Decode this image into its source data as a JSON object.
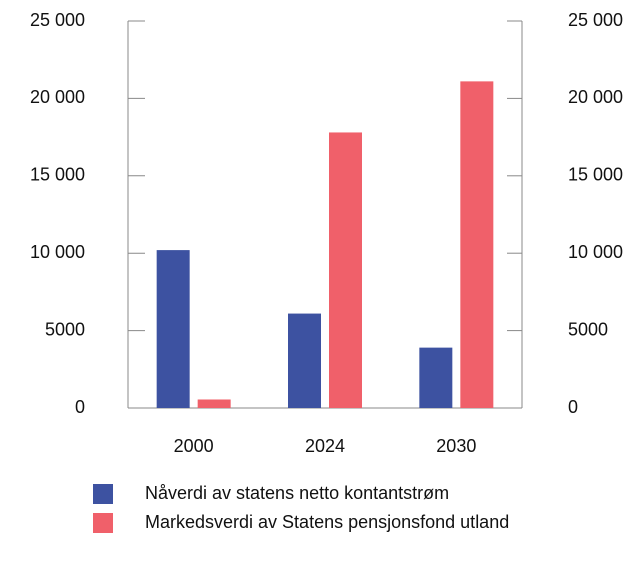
{
  "chart_data": {
    "type": "bar",
    "categories": [
      "2000",
      "2024",
      "2030"
    ],
    "series": [
      {
        "name": "Nåverdi av statens netto kontantstrøm",
        "color": "#3d52a1",
        "values": [
          10200,
          6100,
          3900
        ]
      },
      {
        "name": "Markedsverdi av Statens pensjonsfond utland",
        "color": "#f0606a",
        "values": [
          550,
          17800,
          21100
        ]
      }
    ],
    "ylim": [
      0,
      25000
    ],
    "yticks": [
      0,
      5000,
      {
        "value": 10000,
        "label": "10 000"
      },
      {
        "value": 15000,
        "label": "15 000"
      },
      {
        "value": 20000,
        "label": "20 000"
      },
      {
        "value": 25000,
        "label": "25 000"
      }
    ],
    "y2lim": [
      0,
      25000
    ],
    "y2ticks": [
      0,
      5000,
      {
        "value": 10000,
        "label": "10 000"
      },
      {
        "value": 15000,
        "label": "15 000"
      },
      {
        "value": 20000,
        "label": "20 000"
      },
      {
        "value": 25000,
        "label": "25 000"
      }
    ],
    "legend": "bottom"
  }
}
